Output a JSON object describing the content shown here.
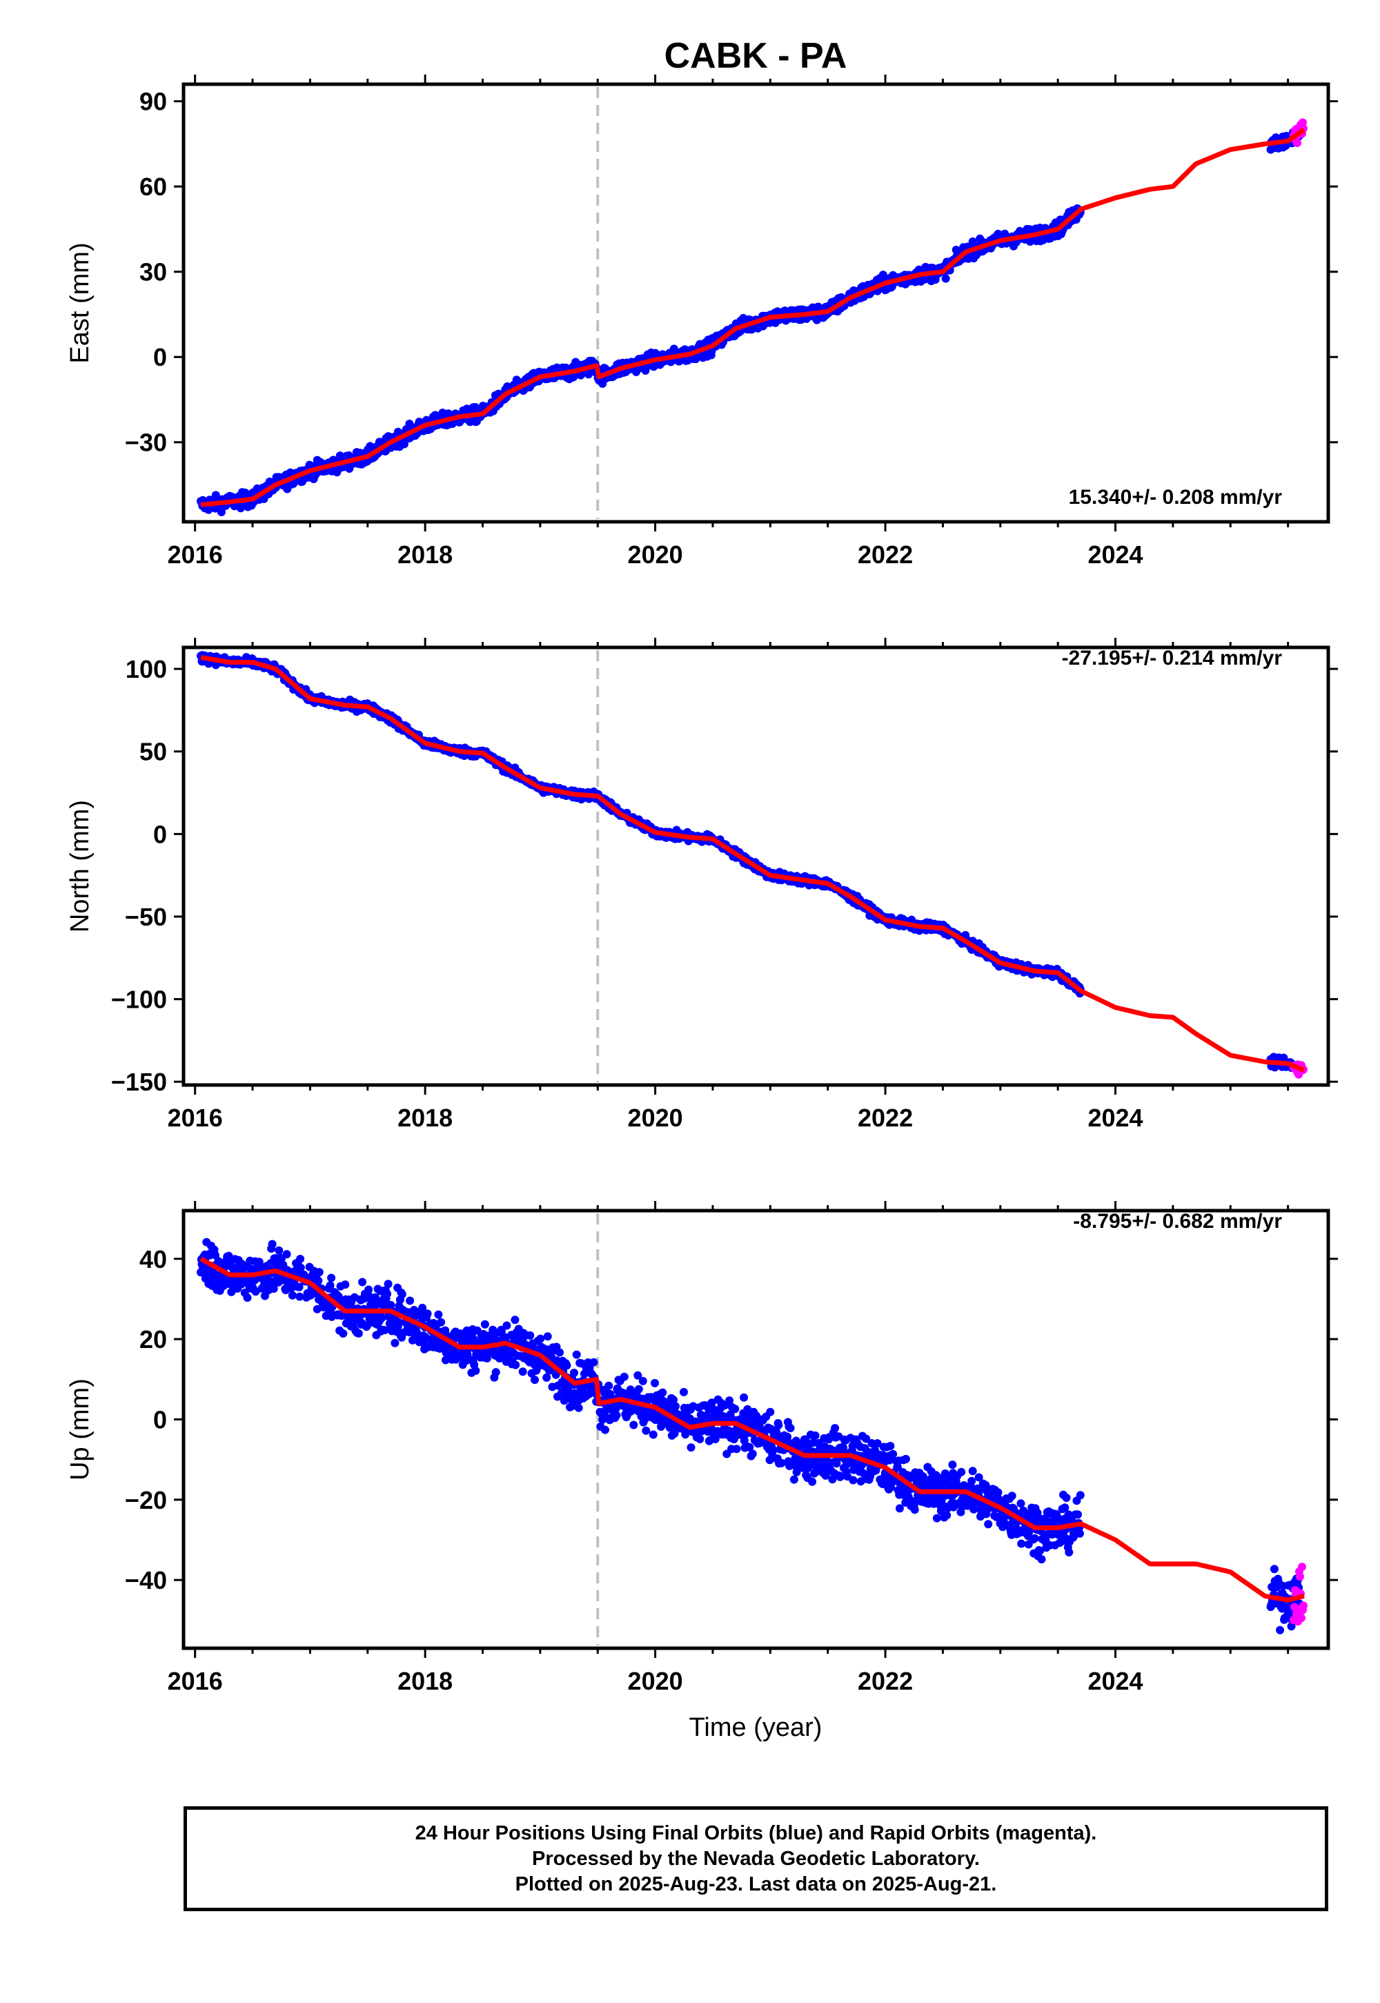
{
  "title": "CABK - PA",
  "x_axis_label": "Time (year)",
  "footer": {
    "line1": "24 Hour Positions Using Final Orbits (blue) and Rapid Orbits (magenta).",
    "line2": "Processed by the Nevada Geodetic Laboratory.",
    "line3": "Plotted on 2025-Aug-23. Last data on 2025-Aug-21."
  },
  "colors": {
    "final_orbit_points": "#0000ff",
    "rapid_orbit_points": "#ff00ff",
    "model_fit": "#ff0000",
    "event_line": "#c0c0c0",
    "frame": "#000000"
  },
  "chart_data": [
    {
      "type": "scatter",
      "component": "East",
      "ylabel": "East (mm)",
      "rate_label": "15.340+/- 0.208 mm/yr",
      "xlim": [
        2015.9,
        2025.85
      ],
      "ylim": [
        -58,
        96
      ],
      "xticks": [
        2016,
        2018,
        2020,
        2022,
        2024
      ],
      "yticks": [
        -30,
        0,
        30,
        60,
        90
      ],
      "event_line_year": 2019.5,
      "final_data_ranges": [
        [
          2016.05,
          2023.7
        ],
        [
          2025.35,
          2025.6
        ]
      ],
      "rapid_data_range": [
        2025.55,
        2025.64
      ],
      "noise_mm": 1.8,
      "series": [
        {
          "name": "model",
          "x": [
            2016.05,
            2016.3,
            2016.5,
            2016.7,
            2017.0,
            2017.3,
            2017.5,
            2017.7,
            2018.0,
            2018.3,
            2018.5,
            2018.7,
            2019.0,
            2019.3,
            2019.49,
            2019.51,
            2019.7,
            2020.0,
            2020.3,
            2020.5,
            2020.7,
            2021.0,
            2021.3,
            2021.5,
            2021.7,
            2022.0,
            2022.3,
            2022.5,
            2022.7,
            2023.0,
            2023.3,
            2023.5,
            2023.7,
            2024.0,
            2024.3,
            2024.5,
            2024.7,
            2025.0,
            2025.3,
            2025.5,
            2025.64
          ],
          "y": [
            -52,
            -51,
            -50,
            -45,
            -40,
            -37,
            -35,
            -30,
            -24,
            -21,
            -20,
            -13,
            -7,
            -5,
            -3,
            -7,
            -4,
            -1,
            1,
            4,
            10,
            14,
            15,
            16,
            21,
            26,
            29,
            30,
            37,
            41,
            43,
            45,
            52,
            56,
            59,
            60,
            68,
            73,
            75,
            76,
            80
          ]
        }
      ]
    },
    {
      "type": "scatter",
      "component": "North",
      "ylabel": "North (mm)",
      "rate_label": "-27.195+/- 0.214 mm/yr",
      "xlim": [
        2015.9,
        2025.85
      ],
      "ylim": [
        -152,
        113
      ],
      "xticks": [
        2016,
        2018,
        2020,
        2022,
        2024
      ],
      "yticks": [
        -150,
        -100,
        -50,
        0,
        50,
        100
      ],
      "event_line_year": 2019.5,
      "final_data_ranges": [
        [
          2016.05,
          2023.7
        ],
        [
          2025.35,
          2025.6
        ]
      ],
      "rapid_data_range": [
        2025.55,
        2025.64
      ],
      "noise_mm": 1.8,
      "series": [
        {
          "name": "model",
          "x": [
            2016.05,
            2016.3,
            2016.5,
            2016.7,
            2017.0,
            2017.3,
            2017.5,
            2017.7,
            2018.0,
            2018.3,
            2018.5,
            2018.7,
            2019.0,
            2019.3,
            2019.5,
            2019.7,
            2020.0,
            2020.3,
            2020.5,
            2020.7,
            2021.0,
            2021.3,
            2021.5,
            2021.7,
            2022.0,
            2022.3,
            2022.5,
            2022.7,
            2023.0,
            2023.3,
            2023.5,
            2023.7,
            2024.0,
            2024.3,
            2024.5,
            2024.7,
            2025.0,
            2025.3,
            2025.5,
            2025.64
          ],
          "y": [
            107,
            104,
            104,
            100,
            82,
            78,
            77,
            70,
            55,
            50,
            49,
            40,
            28,
            24,
            23,
            12,
            1,
            -2,
            -3,
            -12,
            -25,
            -28,
            -30,
            -38,
            -52,
            -56,
            -57,
            -65,
            -78,
            -83,
            -84,
            -95,
            -105,
            -110,
            -111,
            -121,
            -134,
            -138,
            -139,
            -143
          ]
        }
      ]
    },
    {
      "type": "scatter",
      "component": "Up",
      "ylabel": "Up (mm)",
      "rate_label": "-8.795+/- 0.682 mm/yr",
      "xlim": [
        2015.9,
        2025.85
      ],
      "ylim": [
        -57,
        52
      ],
      "xticks": [
        2016,
        2018,
        2020,
        2022,
        2024
      ],
      "yticks": [
        -40,
        -20,
        0,
        20,
        40
      ],
      "event_line_year": 2019.5,
      "final_data_ranges": [
        [
          2016.05,
          2023.7
        ],
        [
          2025.35,
          2025.6
        ]
      ],
      "rapid_data_range": [
        2025.55,
        2025.64
      ],
      "noise_mm": 4.2,
      "series": [
        {
          "name": "model",
          "x": [
            2016.05,
            2016.3,
            2016.5,
            2016.7,
            2017.0,
            2017.3,
            2017.5,
            2017.7,
            2018.0,
            2018.3,
            2018.5,
            2018.7,
            2019.0,
            2019.3,
            2019.49,
            2019.51,
            2019.7,
            2020.0,
            2020.3,
            2020.5,
            2020.7,
            2021.0,
            2021.3,
            2021.5,
            2021.7,
            2022.0,
            2022.3,
            2022.5,
            2022.7,
            2023.0,
            2023.3,
            2023.5,
            2023.7,
            2024.0,
            2024.3,
            2024.5,
            2024.7,
            2025.0,
            2025.3,
            2025.5,
            2025.64
          ],
          "y": [
            40,
            36,
            36,
            37,
            34,
            27,
            27,
            27,
            23,
            18,
            18,
            19,
            16,
            9,
            10,
            4,
            5,
            3,
            -2,
            -1,
            -1,
            -5,
            -9,
            -9,
            -9,
            -12,
            -18,
            -18,
            -18,
            -22,
            -27,
            -27,
            -26,
            -30,
            -36,
            -36,
            -36,
            -38,
            -44,
            -45,
            -44
          ]
        }
      ]
    }
  ]
}
